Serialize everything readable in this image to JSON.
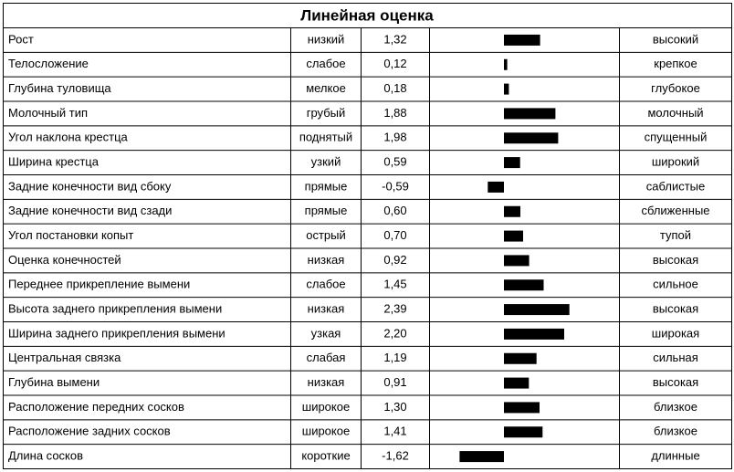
{
  "chart_data": {
    "type": "bar",
    "title": "Линейная оценка",
    "categories": [
      "Рост",
      "Телосложение",
      "Глубина туловища",
      "Молочный тип",
      "Угол наклона крестца",
      "Ширина крестца",
      "Задние конечности вид сбоку",
      "Задние конечности вид сзади",
      "Угол постановки копыт",
      "Оценка конечностей",
      "Переднее прикрепление вымени",
      "Высота заднего прикрепления вымени",
      "Ширина заднего прикрепления вымени",
      "Центральная связка",
      "Глубина вымени",
      "Расположение передних сосков",
      "Расположение задних сосков",
      "Длина сосков"
    ],
    "low_labels": [
      "низкий",
      "слабое",
      "мелкое",
      "грубый",
      "поднятый",
      "узкий",
      "прямые",
      "прямые",
      "острый",
      "низкая",
      "слабое",
      "низкая",
      "узкая",
      "слабая",
      "низкая",
      "широкое",
      "широкое",
      "короткие"
    ],
    "values": [
      1.32,
      0.12,
      0.18,
      1.88,
      1.98,
      0.59,
      -0.59,
      0.6,
      0.7,
      0.92,
      1.45,
      2.39,
      2.2,
      1.19,
      0.91,
      1.3,
      1.41,
      -1.62
    ],
    "value_labels": [
      "1,32",
      "0,12",
      "0,18",
      "1,88",
      "1,98",
      "0,59",
      "-0,59",
      "0,60",
      "0,70",
      "0,92",
      "1,45",
      "2,39",
      "2,20",
      "1,19",
      "0,91",
      "1,30",
      "1,41",
      "-1,62"
    ],
    "high_labels": [
      "высокий",
      "крепкое",
      "глубокое",
      "молочный",
      "спущенный",
      "широкий",
      "саблистые",
      "сближенные",
      "тупой",
      "высокая",
      "сильное",
      "высокая",
      "широкая",
      "сильная",
      "высокая",
      "близкое",
      "близкое",
      "длинные"
    ],
    "color": "#000000"
  }
}
